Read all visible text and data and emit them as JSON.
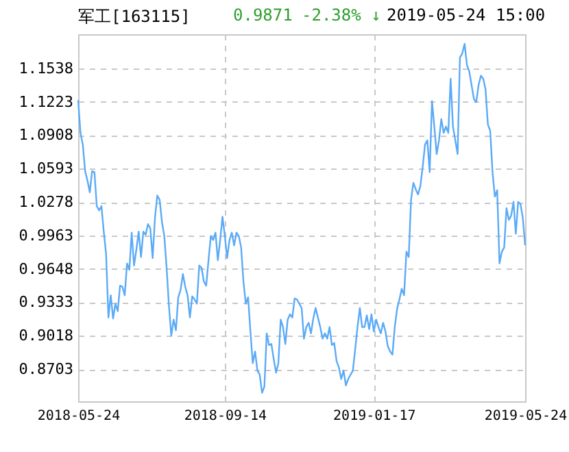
{
  "chart_data": {
    "type": "line",
    "title": "军工[163115]",
    "annotations": [
      "0.9871",
      "-2.38% ↓",
      "2019-05-24 15:00"
    ],
    "categories": [
      "2018-05-24",
      null,
      null,
      null,
      null,
      null,
      null,
      null,
      null,
      null,
      null,
      null,
      null,
      null,
      null,
      null,
      null,
      null,
      null,
      null,
      null,
      null,
      null,
      null,
      null,
      null,
      null,
      null,
      null,
      null,
      null,
      null,
      null,
      null,
      null,
      null,
      null,
      null,
      null,
      null,
      null,
      null,
      null,
      null,
      null,
      null,
      null,
      null,
      null,
      null,
      null,
      null,
      null,
      null,
      null,
      null,
      null,
      null,
      null,
      null,
      null,
      null,
      null,
      "2018-09-14",
      null,
      null,
      null,
      null,
      null,
      null,
      null,
      null,
      null,
      null,
      null,
      null,
      null,
      null,
      null,
      null,
      null,
      null,
      null,
      null,
      null,
      null,
      null,
      null,
      null,
      null,
      null,
      null,
      null,
      null,
      null,
      null,
      null,
      null,
      null,
      null,
      null,
      null,
      null,
      null,
      null,
      null,
      null,
      null,
      null,
      null,
      null,
      null,
      null,
      null,
      null,
      null,
      null,
      null,
      null,
      null,
      null,
      null,
      null,
      null,
      null,
      null,
      null,
      "2019-01-17",
      null,
      null,
      null,
      null,
      null,
      null,
      null,
      null,
      null,
      null,
      null,
      null,
      null,
      null,
      null,
      null,
      null,
      null,
      null,
      null,
      null,
      null,
      null,
      null,
      null,
      null,
      null,
      null,
      null,
      null,
      null,
      null,
      null,
      null,
      null,
      null,
      null,
      null,
      null,
      null,
      null,
      null,
      null,
      null,
      null,
      null,
      null,
      null,
      null,
      null,
      null,
      null,
      null,
      null,
      null,
      null,
      null,
      null,
      null,
      null,
      null,
      null,
      null,
      null,
      "2019-05-24"
    ],
    "series": [
      {
        "color": "#5aaaf7",
        "values": [
          1.124,
          1.093,
          1.082,
          1.057,
          1.048,
          1.037,
          1.057,
          1.056,
          1.024,
          1.02,
          1.024,
          1.0,
          0.979,
          0.919,
          0.94,
          0.918,
          0.932,
          0.925,
          0.949,
          0.948,
          0.94,
          0.97,
          0.964,
          0.999,
          0.968,
          0.983,
          1.0,
          0.976,
          1.0,
          0.997,
          1.007,
          1.003,
          0.975,
          1.013,
          1.034,
          1.03,
          1.009,
          0.996,
          0.966,
          0.93,
          0.902,
          0.917,
          0.907,
          0.938,
          0.945,
          0.96,
          0.948,
          0.94,
          0.919,
          0.939,
          0.936,
          0.932,
          0.968,
          0.966,
          0.953,
          0.949,
          0.973,
          0.996,
          0.992,
          0.999,
          0.973,
          0.992,
          1.014,
          0.996,
          0.975,
          0.992,
          0.999,
          0.987,
          0.999,
          0.996,
          0.985,
          0.953,
          0.932,
          0.938,
          0.906,
          0.876,
          0.887,
          0.869,
          0.865,
          0.848,
          0.854,
          0.904,
          0.893,
          0.894,
          0.88,
          0.867,
          0.876,
          0.917,
          0.91,
          0.894,
          0.917,
          0.922,
          0.919,
          0.937,
          0.936,
          0.932,
          0.928,
          0.899,
          0.91,
          0.914,
          0.904,
          0.918,
          0.928,
          0.919,
          0.91,
          0.899,
          0.904,
          0.899,
          0.91,
          0.893,
          0.895,
          0.878,
          0.872,
          0.861,
          0.869,
          0.855,
          0.861,
          0.865,
          0.869,
          0.889,
          0.91,
          0.928,
          0.91,
          0.91,
          0.921,
          0.908,
          0.922,
          0.906,
          0.917,
          0.91,
          0.904,
          0.914,
          0.906,
          0.892,
          0.887,
          0.884,
          0.91,
          0.927,
          0.936,
          0.946,
          0.94,
          0.981,
          0.976,
          1.03,
          1.046,
          1.04,
          1.035,
          1.043,
          1.061,
          1.082,
          1.086,
          1.056,
          1.123,
          1.099,
          1.073,
          1.086,
          1.106,
          1.093,
          1.099,
          1.093,
          1.144,
          1.099,
          1.086,
          1.073,
          1.164,
          1.168,
          1.177,
          1.157,
          1.151,
          1.138,
          1.125,
          1.122,
          1.138,
          1.147,
          1.144,
          1.134,
          1.101,
          1.095,
          1.056,
          1.033,
          1.039,
          0.97,
          0.981,
          0.985,
          1.022,
          1.011,
          1.015,
          1.028,
          0.998,
          1.028,
          1.026,
          1.013,
          0.9871
        ]
      }
    ],
    "ylim": [
      0.84,
      1.186
    ],
    "yticks": [
      0.8703,
      0.9018,
      0.9333,
      0.9648,
      0.9963,
      1.0278,
      1.0593,
      1.0908,
      1.1223,
      1.1538
    ],
    "grid": true
  }
}
